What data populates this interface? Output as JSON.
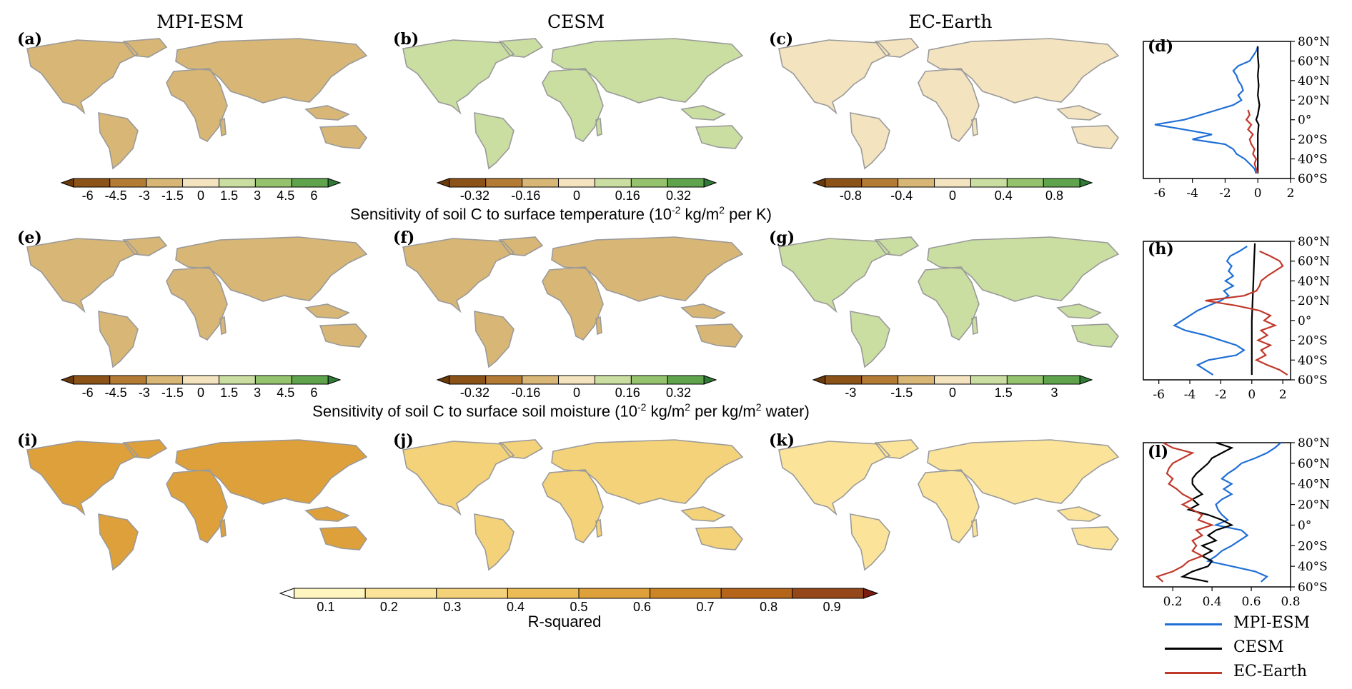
{
  "columns": [
    "MPI-ESM",
    "CESM",
    "EC-Earth"
  ],
  "panels": {
    "a": "(a)",
    "b": "(b)",
    "c": "(c)",
    "d": "(d)",
    "e": "(e)",
    "f": "(f)",
    "g": "(g)",
    "h": "(h)",
    "i": "(i)",
    "j": "(j)",
    "k": "(k)",
    "l": "(l)"
  },
  "captions": {
    "row1_pre": "Sensitivity of soil C to surface temperature (10",
    "row1_exp": "-2",
    "row1_mid": " kg/m",
    "row1_sq": "2",
    "row1_post": " per K)",
    "row2_pre": "Sensitivity of soil C to surface soil moisture (10",
    "row2_exp": "-2",
    "row2_mid": " kg/m",
    "row2_sq": "2",
    "row2_mid2": " per kg/m",
    "row2_sq2": "2",
    "row2_post": " water)",
    "row3": "R-squared"
  },
  "colorbars": {
    "row1": [
      {
        "labels": [
          "-6",
          "-4.5",
          "-3",
          "-1.5",
          "0",
          "1.5",
          "3",
          "4.5",
          "6"
        ]
      },
      {
        "labels": [
          "-0.32",
          "-0.16",
          "0",
          "0.16",
          "0.32"
        ]
      },
      {
        "labels": [
          "-0.8",
          "-0.4",
          "0",
          "0.4",
          "0.8"
        ]
      }
    ],
    "row2": [
      {
        "labels": [
          "-6",
          "-4.5",
          "-3",
          "-1.5",
          "0",
          "1.5",
          "3",
          "4.5",
          "6"
        ]
      },
      {
        "labels": [
          "-0.32",
          "-0.16",
          "0",
          "0.16",
          "0.32"
        ]
      },
      {
        "labels": [
          "-3",
          "-1.5",
          "0",
          "1.5",
          "3"
        ]
      }
    ],
    "row3": {
      "labels": [
        "0.1",
        "0.2",
        "0.3",
        "0.4",
        "0.5",
        "0.6",
        "0.7",
        "0.8",
        "0.9"
      ]
    },
    "diverging_colors": [
      "#6b3a0a",
      "#8c5318",
      "#b47b35",
      "#d8b676",
      "#f3e3bf",
      "#c9dea0",
      "#95c36d",
      "#5fa34c",
      "#2f7a35"
    ],
    "sequential_colors": [
      "#ffffff",
      "#fff5bf",
      "#fbe49a",
      "#f4d27a",
      "#ebbc55",
      "#dea03a",
      "#cc8525",
      "#b4651a",
      "#96471a",
      "#7a1c10"
    ]
  },
  "lat_ticks": [
    "80°N",
    "60°N",
    "40°N",
    "20°N",
    "0°",
    "20°S",
    "40°S",
    "60°S"
  ],
  "profile_xticks": {
    "d": [
      "-6",
      "-4",
      "-2",
      "0",
      "2"
    ],
    "h": [
      "-6",
      "-4",
      "-2",
      "0",
      "2"
    ],
    "l": [
      "0.2",
      "0.4",
      "0.6",
      "0.8"
    ]
  },
  "legend": [
    {
      "name": "MPI-ESM",
      "color": "#1f6fd6"
    },
    {
      "name": "CESM",
      "color": "#000000"
    },
    {
      "name": "EC-Earth",
      "color": "#c0392b"
    }
  ],
  "chart_data": [
    {
      "type": "line",
      "panel": "d",
      "x_axis": "sensitivity",
      "y_axis": "latitude",
      "xlim": [
        -7,
        2
      ],
      "ylim": [
        -60,
        80
      ],
      "series": [
        {
          "name": "MPI-ESM",
          "lat": [
            75,
            70,
            65,
            60,
            55,
            50,
            45,
            40,
            35,
            30,
            25,
            20,
            15,
            10,
            5,
            0,
            -5,
            -10,
            -15,
            -20,
            -25,
            -30,
            -35,
            -40,
            -45,
            -50,
            -55
          ],
          "x": [
            0,
            -0.1,
            -0.3,
            -0.5,
            -1.2,
            -1.5,
            -1.3,
            -1.2,
            -1.0,
            -0.9,
            -1.2,
            -1.0,
            -1.5,
            -2.5,
            -3.5,
            -4.5,
            -6.3,
            -4.5,
            -2.8,
            -4.0,
            -2.0,
            -1.5,
            -1.3,
            -0.8,
            -0.5,
            -0.2,
            -0.1
          ]
        },
        {
          "name": "CESM",
          "lat": [
            75,
            65,
            55,
            45,
            35,
            25,
            15,
            5,
            0,
            -5,
            -15,
            -25,
            -35,
            -45,
            -55
          ],
          "x": [
            0,
            0,
            0.05,
            0,
            0.05,
            0,
            0.1,
            0,
            -0.1,
            0.05,
            0,
            0,
            0,
            0,
            0
          ]
        },
        {
          "name": "EC-Earth",
          "lat": [
            10,
            5,
            0,
            -5,
            -10,
            -15,
            -20,
            -25,
            -30,
            -35,
            -40,
            -45,
            -50,
            -55
          ],
          "x": [
            -0.6,
            -0.5,
            -0.7,
            -0.4,
            -0.6,
            -0.3,
            -0.5,
            -0.4,
            -0.2,
            -0.3,
            -0.1,
            -0.2,
            -0.1,
            0
          ]
        }
      ]
    },
    {
      "type": "line",
      "panel": "h",
      "x_axis": "sensitivity",
      "y_axis": "latitude",
      "xlim": [
        -7,
        2.5
      ],
      "ylim": [
        -60,
        80
      ],
      "series": [
        {
          "name": "MPI-ESM",
          "lat": [
            75,
            70,
            65,
            60,
            55,
            50,
            45,
            40,
            35,
            30,
            25,
            20,
            15,
            10,
            5,
            0,
            -5,
            -10,
            -15,
            -20,
            -25,
            -30,
            -35,
            -40,
            -45,
            -50,
            -55
          ],
          "x": [
            -0.3,
            -0.8,
            -1.4,
            -1.6,
            -1.3,
            -1.5,
            -1.2,
            -1.7,
            -1.2,
            -1.8,
            -1.5,
            -2.0,
            -2.8,
            -3.5,
            -4.0,
            -4.5,
            -5.0,
            -4.3,
            -3.0,
            -2.0,
            -1.0,
            -0.5,
            -1.0,
            -2.8,
            -3.5,
            -3.0,
            -2.5
          ]
        },
        {
          "name": "CESM",
          "lat": [
            78,
            60,
            40,
            20,
            0,
            -20,
            -40,
            -55
          ],
          "x": [
            0.2,
            0.15,
            0.1,
            0.05,
            0,
            0,
            0,
            0
          ]
        },
        {
          "name": "EC-Earth",
          "lat": [
            70,
            65,
            60,
            55,
            50,
            45,
            40,
            35,
            30,
            25,
            20,
            15,
            10,
            5,
            0,
            -5,
            -10,
            -15,
            -20,
            -25,
            -30,
            -35,
            -40,
            -45,
            -50,
            -55
          ],
          "x": [
            0.5,
            1.2,
            1.8,
            2.0,
            1.5,
            1.0,
            0.6,
            0.5,
            0.3,
            -0.5,
            -3.0,
            -1.0,
            0.5,
            1.2,
            0.8,
            1.5,
            0.6,
            1.0,
            0.4,
            1.2,
            0.6,
            0.9,
            0.3,
            1.0,
            1.8,
            2.3
          ]
        }
      ]
    },
    {
      "type": "line",
      "panel": "l",
      "x_axis": "R-squared",
      "y_axis": "latitude",
      "xlim": [
        0.05,
        0.8
      ],
      "ylim": [
        -60,
        80
      ],
      "series": [
        {
          "name": "MPI-ESM",
          "lat": [
            80,
            75,
            70,
            65,
            60,
            55,
            50,
            45,
            40,
            35,
            30,
            25,
            20,
            15,
            10,
            5,
            0,
            -5,
            -10,
            -15,
            -20,
            -25,
            -30,
            -35,
            -40,
            -45,
            -50,
            -55
          ],
          "x": [
            0.75,
            0.72,
            0.68,
            0.62,
            0.55,
            0.52,
            0.48,
            0.45,
            0.5,
            0.46,
            0.5,
            0.45,
            0.42,
            0.43,
            0.45,
            0.48,
            0.42,
            0.55,
            0.58,
            0.54,
            0.5,
            0.45,
            0.42,
            0.38,
            0.5,
            0.62,
            0.68,
            0.65
          ]
        },
        {
          "name": "CESM",
          "lat": [
            80,
            75,
            70,
            65,
            60,
            55,
            50,
            45,
            40,
            35,
            30,
            25,
            20,
            15,
            10,
            5,
            0,
            -5,
            -10,
            -15,
            -20,
            -25,
            -30,
            -35,
            -40,
            -45,
            -50,
            -55
          ],
          "x": [
            0.42,
            0.5,
            0.45,
            0.4,
            0.38,
            0.35,
            0.32,
            0.3,
            0.3,
            0.32,
            0.35,
            0.3,
            0.33,
            0.28,
            0.38,
            0.45,
            0.5,
            0.42,
            0.38,
            0.42,
            0.35,
            0.4,
            0.35,
            0.4,
            0.38,
            0.3,
            0.25,
            0.38
          ]
        },
        {
          "name": "EC-Earth",
          "lat": [
            80,
            75,
            70,
            65,
            60,
            55,
            50,
            45,
            40,
            35,
            30,
            25,
            20,
            15,
            10,
            5,
            0,
            -5,
            -10,
            -15,
            -20,
            -25,
            -30,
            -35,
            -40,
            -45,
            -50,
            -55
          ],
          "x": [
            0.15,
            0.2,
            0.3,
            0.25,
            0.2,
            0.18,
            0.17,
            0.2,
            0.18,
            0.22,
            0.25,
            0.3,
            0.25,
            0.3,
            0.35,
            0.33,
            0.4,
            0.32,
            0.35,
            0.3,
            0.32,
            0.3,
            0.35,
            0.28,
            0.25,
            0.2,
            0.12,
            0.15
          ]
        }
      ]
    }
  ]
}
